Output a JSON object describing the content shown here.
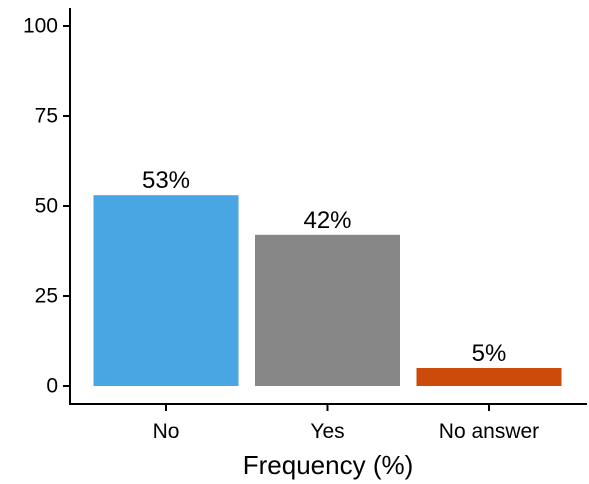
{
  "chart_data": {
    "type": "bar",
    "categories": [
      "No",
      "Yes",
      "No answer"
    ],
    "values": [
      53,
      42,
      5
    ],
    "data_labels": [
      "53%",
      "42%",
      "5%"
    ],
    "colors": [
      "#4aa5e3",
      "#878787",
      "#cc4a0a"
    ],
    "xlabel": "Frequency (%)",
    "ylabel": "",
    "title": "",
    "ylim": [
      0,
      100
    ],
    "yticks": [
      0,
      25,
      50,
      75,
      100
    ],
    "grid": false,
    "legend": "none"
  }
}
